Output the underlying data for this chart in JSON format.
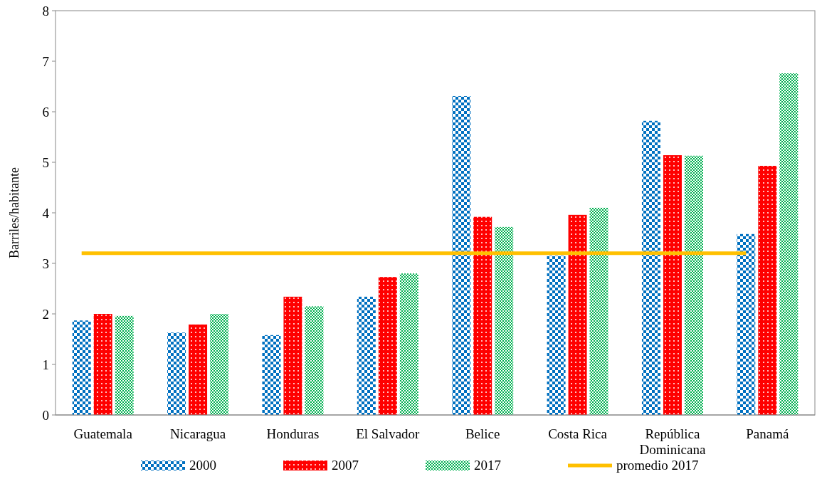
{
  "chart_data": {
    "type": "bar",
    "ylabel": "Barriles/habitante",
    "categories": [
      "Guatemala",
      "Nicaragua",
      "Honduras",
      "El Salvador",
      "Belice",
      "Costa Rica",
      "República Dominicana",
      "Panamá"
    ],
    "series": [
      {
        "name": "2000",
        "color": "#0070c0",
        "values": [
          1.87,
          1.63,
          1.58,
          2.34,
          6.31,
          3.15,
          5.82,
          3.58
        ]
      },
      {
        "name": "2007",
        "color": "#ff0000",
        "values": [
          2.0,
          1.79,
          2.34,
          2.73,
          3.92,
          3.96,
          5.14,
          4.93
        ]
      },
      {
        "name": "2017",
        "color": "#00b050",
        "values": [
          1.96,
          2.0,
          2.15,
          2.8,
          3.72,
          4.1,
          5.13,
          6.76
        ]
      },
      {
        "name": "promedio 2017",
        "type": "line",
        "color": "#ffc000",
        "values": [
          3.2,
          3.2,
          3.2,
          3.2,
          3.2,
          3.2,
          3.2,
          3.2
        ]
      }
    ],
    "ylim": [
      0,
      8
    ],
    "yticks": [
      0,
      1,
      2,
      3,
      4,
      5,
      6,
      7,
      8
    ],
    "grid": false,
    "legend": "bottom"
  }
}
